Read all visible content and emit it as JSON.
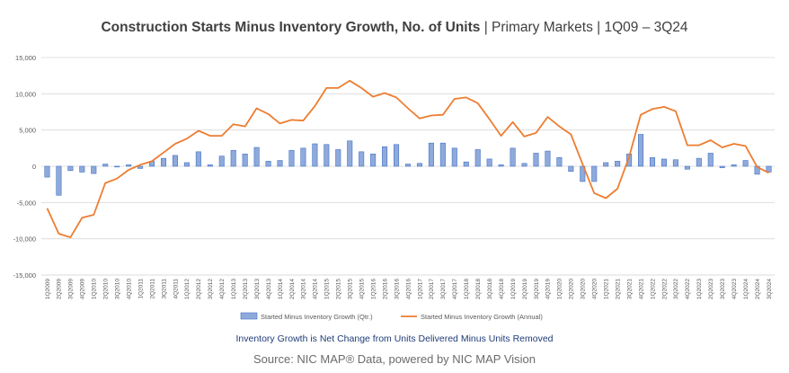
{
  "title": {
    "main": "Construction Starts Minus Inventory Growth, No. of Units",
    "sub": " | Primary Markets | 1Q09 – 3Q24"
  },
  "note": "Inventory Growth is Net Change from Units Delivered Minus Units Removed",
  "source": "Source: NIC MAP® Data, powered by NIC MAP Vision",
  "colors": {
    "bar": "#8eaadb",
    "bar_stroke": "#4472c4",
    "line": "#ed7d31",
    "grid": "#d9d9d9",
    "axis_text": "#595959"
  },
  "chart_data": {
    "type": "bar+line",
    "ylim": [
      -15000,
      15000
    ],
    "yticks": [
      -15000,
      -10000,
      -5000,
      0,
      5000,
      10000,
      15000
    ],
    "ytick_labels": [
      "-15,000",
      "-10,000",
      "-5,000",
      "0",
      "5,000",
      "10,000",
      "15,000"
    ],
    "grid": true,
    "legend_position": "bottom",
    "categories": [
      "1Q2009",
      "2Q2009",
      "3Q2009",
      "4Q2009",
      "1Q2010",
      "2Q2010",
      "3Q2010",
      "4Q2010",
      "1Q2011",
      "2Q2011",
      "3Q2011",
      "4Q2011",
      "1Q2012",
      "2Q2012",
      "3Q2012",
      "4Q2012",
      "1Q2013",
      "2Q2013",
      "3Q2013",
      "4Q2013",
      "1Q2014",
      "2Q2014",
      "3Q2014",
      "4Q2014",
      "1Q2015",
      "2Q2015",
      "3Q2015",
      "4Q2015",
      "1Q2016",
      "2Q2016",
      "3Q2016",
      "4Q2016",
      "1Q2017",
      "2Q2017",
      "3Q2017",
      "4Q2017",
      "1Q2018",
      "2Q2018",
      "3Q2018",
      "4Q2018",
      "1Q2019",
      "2Q2019",
      "3Q2019",
      "4Q2019",
      "1Q2020",
      "2Q2020",
      "3Q2020",
      "4Q2020",
      "1Q2021",
      "2Q2021",
      "3Q2021",
      "4Q2021",
      "1Q2022",
      "2Q2022",
      "3Q2022",
      "4Q2022",
      "1Q2023",
      "2Q2023",
      "3Q2023",
      "4Q2023",
      "1Q2024",
      "2Q2024",
      "3Q2024"
    ],
    "series": [
      {
        "name": "Started Minus Inventory Growth (Qtr.)",
        "type": "bar",
        "values": [
          -1500,
          -4000,
          -600,
          -800,
          -1000,
          300,
          -100,
          200,
          -300,
          700,
          1100,
          1500,
          500,
          2000,
          200,
          1400,
          2200,
          1700,
          2600,
          700,
          800,
          2200,
          2500,
          3100,
          3000,
          2300,
          3500,
          2000,
          1700,
          2700,
          3000,
          300,
          400,
          3200,
          3200,
          2500,
          600,
          2300,
          1000,
          200,
          2500,
          400,
          1800,
          2100,
          1200,
          -700,
          -2100,
          -2100,
          500,
          700,
          1700,
          4400,
          1200,
          1000,
          900,
          -400,
          1100,
          1800,
          -200,
          200,
          800,
          -1100,
          -800
        ]
      },
      {
        "name": "Started Minus Inventory Growth (Annual)",
        "type": "line",
        "values": [
          -5800,
          -9300,
          -9800,
          -7100,
          -6700,
          -2300,
          -1700,
          -500,
          200,
          700,
          1900,
          3100,
          3800,
          4900,
          4200,
          4200,
          5800,
          5500,
          8000,
          7200,
          5900,
          6400,
          6300,
          8300,
          10800,
          10800,
          11800,
          10800,
          9600,
          10100,
          9500,
          8000,
          6600,
          7000,
          7100,
          9300,
          9500,
          8700,
          6500,
          4200,
          6100,
          4100,
          4600,
          6800,
          5500,
          4400,
          300,
          -3700,
          -4400,
          -3100,
          1300,
          7100,
          7900,
          8200,
          7600,
          2900,
          2900,
          3600,
          2600,
          3100,
          2800,
          -100,
          -900
        ]
      }
    ]
  }
}
